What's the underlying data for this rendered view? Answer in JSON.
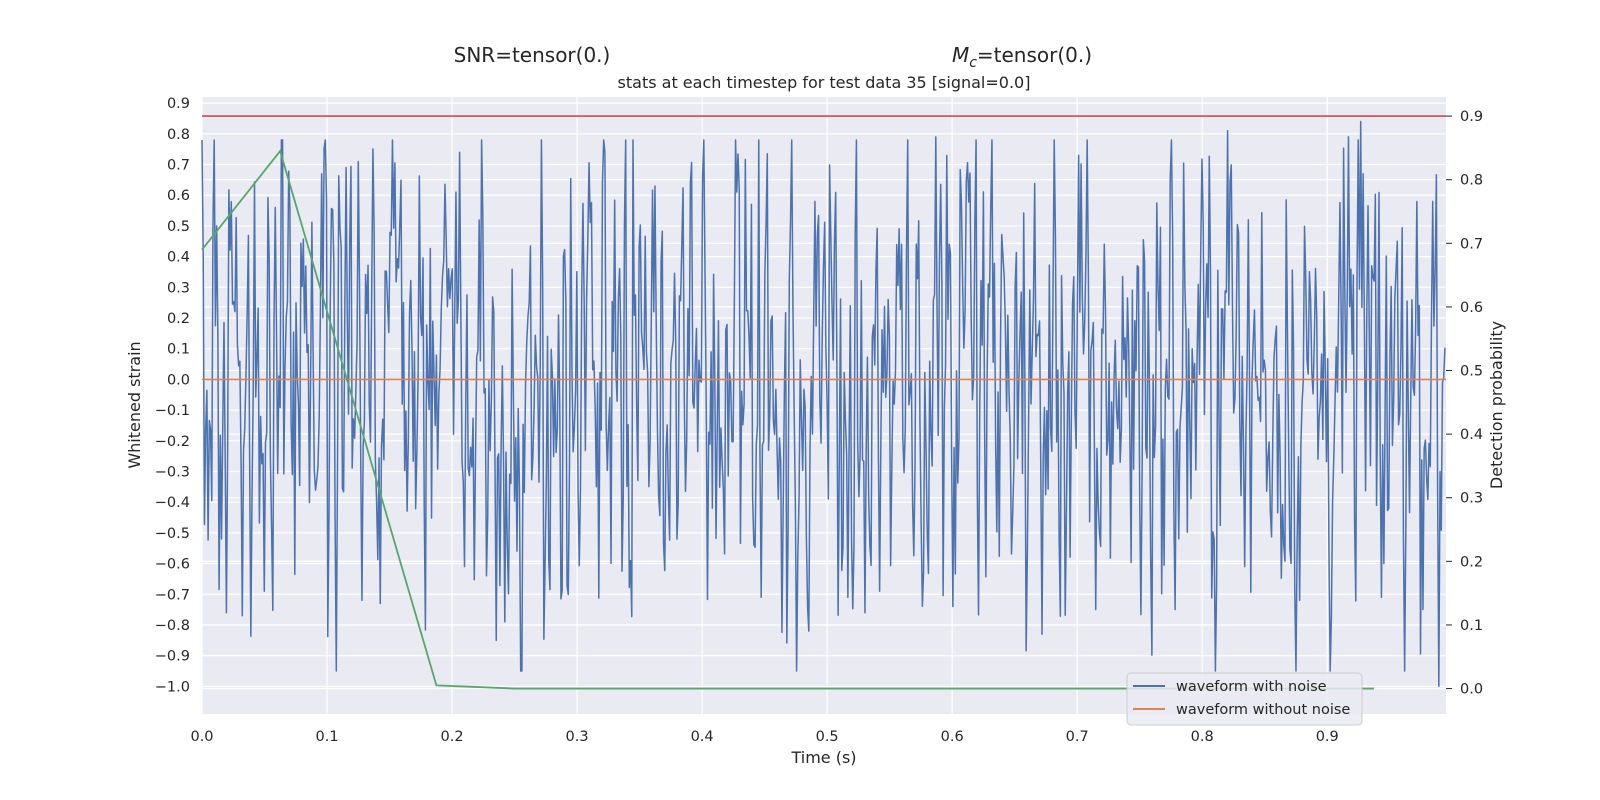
{
  "header": {
    "snr_label": "SNR=tensor(0.)",
    "mc_symbol": "M",
    "mc_subscript": "c",
    "mc_value": "=tensor(0.)"
  },
  "chart_data": {
    "type": "line",
    "title": "stats at each timestep for test data 35 [signal=0.0]",
    "xlabel": "Time (s)",
    "ylabel": "Whitened strain",
    "y2label": "Detection probability",
    "xlim": [
      0.0,
      0.995
    ],
    "ylim": [
      -1.09,
      0.92
    ],
    "y2lim": [
      -0.04,
      0.93
    ],
    "xticks": [
      "0.0",
      "0.1",
      "0.2",
      "0.3",
      "0.4",
      "0.5",
      "0.6",
      "0.7",
      "0.8",
      "0.9"
    ],
    "yticks": [
      "0.9",
      "0.8",
      "0.7",
      "0.6",
      "0.5",
      "0.4",
      "0.3",
      "0.2",
      "0.1",
      "0.0",
      "−0.1",
      "−0.2",
      "−0.3",
      "−0.4",
      "−0.5",
      "−0.6",
      "−0.7",
      "−0.8",
      "−0.9",
      "−1.0"
    ],
    "y2ticks": [
      "0.9",
      "0.8",
      "0.7",
      "0.6",
      "0.5",
      "0.4",
      "0.3",
      "0.2",
      "0.1",
      "0.0"
    ],
    "grid": true,
    "legend_position": "lower right",
    "colors": {
      "noise": "#4c72b0",
      "clean": "#dd8452",
      "probability": "#55a868",
      "threshold": "#c44e52",
      "background": "#eaeaf2",
      "grid": "#ffffff"
    },
    "series": [
      {
        "name": "waveform with noise",
        "axis": "left",
        "sampling_rate_hz": 1024,
        "duration_s": 1.0,
        "approx_range": [
          -1.0,
          0.84
        ],
        "peaks": [
          {
            "x": 0.012,
            "y": 0.5
          },
          {
            "x": 0.016,
            "y": -0.52
          },
          {
            "x": 0.019,
            "y": 0.53
          },
          {
            "x": 0.02,
            "y": -0.76
          },
          {
            "x": 0.032,
            "y": -0.77
          },
          {
            "x": 0.05,
            "y": -0.69
          },
          {
            "x": 0.059,
            "y": 0.56
          },
          {
            "x": 0.096,
            "y": 0.67
          },
          {
            "x": 0.115,
            "y": 0.69
          },
          {
            "x": 0.128,
            "y": -0.72
          },
          {
            "x": 0.143,
            "y": -0.73
          },
          {
            "x": 0.203,
            "y": 0.61
          },
          {
            "x": 0.206,
            "y": 0.74
          },
          {
            "x": 0.234,
            "y": 0.63
          },
          {
            "x": 0.235,
            "y": -0.85
          },
          {
            "x": 0.242,
            "y": -0.79
          },
          {
            "x": 0.362,
            "y": 0.63
          },
          {
            "x": 0.447,
            "y": -0.71
          },
          {
            "x": 0.49,
            "y": 0.58
          },
          {
            "x": 0.517,
            "y": -0.71
          },
          {
            "x": 0.529,
            "y": -0.75
          },
          {
            "x": 0.53,
            "y": -0.76
          },
          {
            "x": 0.542,
            "y": -0.69
          },
          {
            "x": 0.587,
            "y": 0.79
          },
          {
            "x": 0.601,
            "y": -0.74
          },
          {
            "x": 0.672,
            "y": -0.83
          },
          {
            "x": 0.701,
            "y": 0.73
          },
          {
            "x": 0.715,
            "y": -0.75
          },
          {
            "x": 0.82,
            "y": 0.81
          },
          {
            "x": 0.834,
            "y": -0.61
          },
          {
            "x": 0.878,
            "y": -0.72
          },
          {
            "x": 0.917,
            "y": 0.79
          },
          {
            "x": 0.927,
            "y": 0.84
          },
          {
            "x": 0.929,
            "y": 0.67
          },
          {
            "x": 0.943,
            "y": -0.71
          },
          {
            "x": 0.977,
            "y": -0.75
          },
          {
            "x": 0.984,
            "y": 0.58
          },
          {
            "x": 0.989,
            "y": -1.0
          }
        ]
      },
      {
        "name": "waveform without noise",
        "axis": "left",
        "x": [
          0.0,
          0.995
        ],
        "y": [
          0.0,
          0.0
        ]
      },
      {
        "axis": "right",
        "x": [
          0.0,
          0.0625,
          0.1875,
          0.25,
          0.3125,
          0.375,
          0.4375,
          0.5,
          0.5625,
          0.625,
          0.6875,
          0.75,
          0.8125,
          0.875,
          0.9375
        ],
        "y": [
          0.69,
          0.845,
          0.005,
          0.0,
          0.0,
          0.0,
          0.0,
          0.0,
          0.0,
          0.0,
          0.0,
          0.0,
          0.0,
          0.0,
          0.0
        ]
      },
      {
        "axis": "right",
        "x": [
          0.0,
          0.995
        ],
        "y": [
          0.9,
          0.9
        ]
      }
    ]
  }
}
